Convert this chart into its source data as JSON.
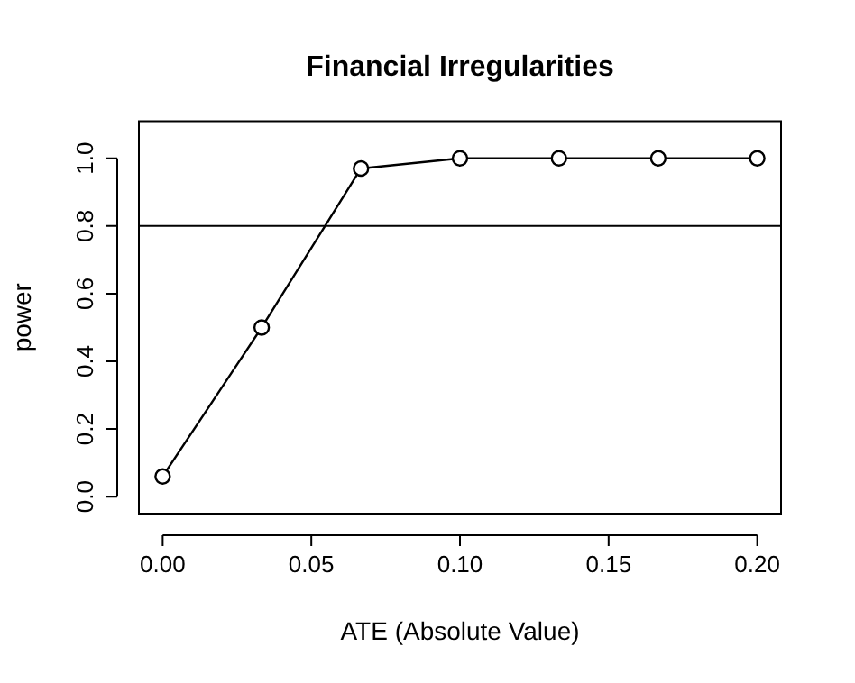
{
  "chart_data": {
    "type": "line",
    "title": "Financial Irregularities",
    "xlabel": "ATE (Absolute Value)",
    "ylabel": "power",
    "x": [
      0,
      0.0333,
      0.0667,
      0.1,
      0.1333,
      0.1667,
      0.2
    ],
    "series": [
      {
        "color": "#000000",
        "values": [
          0.06,
          0.5,
          0.97,
          1,
          1,
          1,
          1
        ]
      }
    ],
    "xlim": [
      -0.008,
      0.208
    ],
    "xticks": [
      {
        "value": 0,
        "label": "0.00"
      },
      {
        "value": 0.05,
        "label": "0.05"
      },
      {
        "value": 0.1,
        "label": "0.10"
      },
      {
        "value": 0.15,
        "label": "0.15"
      },
      {
        "value": 0.2,
        "label": "0.20"
      }
    ],
    "ylim": [
      -0.05,
      1.11
    ],
    "yticks": [
      {
        "value": 0,
        "label": "0.0"
      },
      {
        "value": 0.2,
        "label": "0.2"
      },
      {
        "value": 0.4,
        "label": "0.4"
      },
      {
        "value": 0.6,
        "label": "0.6"
      },
      {
        "value": 0.8,
        "label": "0.8"
      },
      {
        "value": 1,
        "label": "1.0"
      }
    ],
    "ref_lines": [
      {
        "axis": "y",
        "value": 0.8,
        "color": "#000000"
      }
    ],
    "grid": false,
    "legend": false,
    "marker": "circle",
    "line_style": "solid"
  }
}
